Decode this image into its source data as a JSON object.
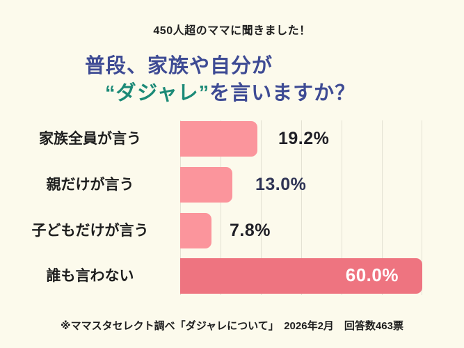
{
  "page": {
    "background": "#fcfaec"
  },
  "header": {
    "eyebrow": "450人超のママに聞きました！",
    "title_line1": "普段、家族や自分が",
    "title_line2_highlight": "“ダジャレ”",
    "title_line2_rest": "を言いますか？",
    "title_color": "#3e4b94",
    "highlight_color": "#1b8a77"
  },
  "chart_data": {
    "type": "bar",
    "orientation": "horizontal",
    "categories": [
      "家族全員が言う",
      "親だけが言う",
      "子どもだけが言う",
      "誰も言わない"
    ],
    "values": [
      19.2,
      13.0,
      7.8,
      60.0
    ],
    "value_labels": [
      "19.2%",
      "13.0%",
      "7.8%",
      "60.0%"
    ],
    "xlim": [
      0,
      60
    ],
    "gridline_interval": 10,
    "grid": true,
    "gridline_color": "#e3e1d3",
    "bar_colors": [
      "#fb959c",
      "#fb959c",
      "#fb959c",
      "#ee7480"
    ],
    "value_label_colors": [
      "#1f1f26",
      "#2e3354",
      "#1f1f26",
      "#ffffff"
    ],
    "value_label_inside": [
      false,
      false,
      false,
      true
    ],
    "title": "普段、家族や自分が“ダジャレ”を言いますか？",
    "xlabel": "",
    "ylabel": ""
  },
  "footer": {
    "source": "※ママスタセレクト調べ「ダジャレについて」　2026年2月　回答数463票"
  }
}
